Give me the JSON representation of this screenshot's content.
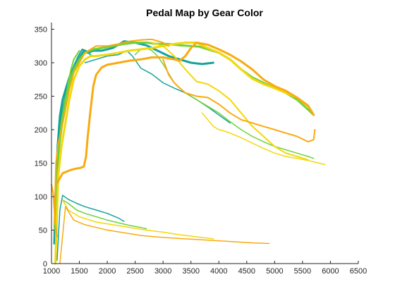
{
  "chart_data": {
    "type": "line",
    "title": "Pedal Map by Gear Color",
    "xlabel": "",
    "ylabel": "",
    "xlim": [
      1000,
      6500
    ],
    "ylim": [
      0,
      360
    ],
    "xticks": [
      1000,
      1500,
      2000,
      2500,
      3000,
      3500,
      4000,
      4500,
      5000,
      5500,
      6000,
      6500
    ],
    "yticks": [
      0,
      50,
      100,
      150,
      200,
      250,
      300,
      350
    ],
    "grid": false,
    "legend": "none",
    "colors": {
      "teal": "#16a39a",
      "green": "#6fd23a",
      "yellow": "#f2d80a",
      "orange": "#f9aa10"
    },
    "series": [
      {
        "color": "#16a39a",
        "width": 3,
        "x": [
          1050,
          1080,
          1110,
          1150,
          1200,
          1260,
          1320,
          1380,
          1450,
          1520,
          1580,
          1650,
          1750,
          1900,
          2100,
          2300,
          2500,
          2700,
          2900,
          3100,
          3300,
          3500,
          3700,
          3900
        ],
        "y": [
          30,
          120,
          175,
          220,
          245,
          262,
          278,
          290,
          300,
          310,
          318,
          315,
          318,
          318,
          322,
          332,
          330,
          326,
          318,
          310,
          305,
          300,
          298,
          300
        ]
      },
      {
        "color": "#16a39a",
        "width": 2,
        "x": [
          1060,
          1100,
          1150,
          1200,
          1260,
          1320,
          1400,
          1480,
          1550,
          1620,
          1700
        ],
        "y": [
          60,
          160,
          205,
          230,
          255,
          275,
          295,
          310,
          320,
          318,
          312
        ]
      },
      {
        "color": "#16a39a",
        "width": 1.5,
        "x": [
          1600,
          1800,
          2000,
          2200,
          2350,
          2450,
          2600,
          2800,
          3000,
          3200,
          3400,
          3600,
          3800,
          4000,
          4200
        ],
        "y": [
          300,
          305,
          310,
          312,
          318,
          310,
          292,
          283,
          270,
          262,
          255,
          245,
          234,
          222,
          210
        ]
      },
      {
        "color": "#16a39a",
        "width": 1.5,
        "x": [
          1100,
          1150,
          1200,
          1300,
          1450,
          1600,
          1800,
          2000,
          2200,
          2300
        ],
        "y": [
          5,
          80,
          102,
          96,
          90,
          85,
          80,
          75,
          68,
          63
        ]
      },
      {
        "color": "#6fd23a",
        "width": 3,
        "x": [
          1080,
          1120,
          1180,
          1250,
          1320,
          1400,
          1500,
          1600,
          1750,
          1900,
          2100,
          2300,
          2500,
          2700,
          2900,
          3100,
          3300,
          3500,
          3650,
          3800,
          4000,
          4200,
          4400,
          4600,
          4800,
          5000,
          5200,
          5400,
          5600,
          5700
        ],
        "y": [
          40,
          160,
          210,
          245,
          270,
          290,
          305,
          315,
          320,
          322,
          325,
          328,
          330,
          330,
          328,
          328,
          326,
          325,
          324,
          320,
          315,
          305,
          290,
          278,
          270,
          262,
          255,
          245,
          230,
          222
        ]
      },
      {
        "color": "#6fd23a",
        "width": 2,
        "x": [
          1050,
          1100,
          1150,
          1200,
          1250,
          1300,
          1350,
          1400,
          1500
        ],
        "y": [
          50,
          140,
          180,
          210,
          240,
          270,
          290,
          305,
          318
        ]
      },
      {
        "color": "#6fd23a",
        "width": 1.5,
        "x": [
          2500,
          2600,
          2700,
          2800,
          2900,
          3000,
          3200,
          3400,
          3600,
          3800,
          4000,
          4200,
          4400,
          4600,
          4800,
          5000,
          5200,
          5400,
          5600,
          5700
        ],
        "y": [
          312,
          320,
          322,
          318,
          310,
          298,
          270,
          255,
          245,
          235,
          225,
          212,
          200,
          190,
          182,
          175,
          170,
          165,
          160,
          157
        ]
      },
      {
        "color": "#6fd23a",
        "width": 1.5,
        "x": [
          1200,
          1300,
          1450,
          1600,
          1800,
          2000,
          2200,
          2400,
          2600,
          2700
        ],
        "y": [
          95,
          90,
          80,
          75,
          70,
          65,
          61,
          57,
          54,
          52
        ]
      },
      {
        "color": "#f2d80a",
        "width": 3,
        "x": [
          1070,
          1120,
          1180,
          1250,
          1320,
          1400,
          1500,
          1600,
          1700,
          1800,
          2000,
          2200,
          2400,
          2600,
          2800,
          3000,
          3200,
          3400,
          3600,
          3800,
          4000,
          4200,
          4400,
          4600,
          4800,
          5000,
          5200,
          5400,
          5600
        ],
        "y": [
          0,
          130,
          175,
          210,
          245,
          275,
          295,
          305,
          310,
          310,
          312,
          315,
          318,
          320,
          322,
          325,
          328,
          330,
          330,
          322,
          315,
          305,
          290,
          276,
          268,
          262,
          255,
          248,
          235
        ]
      },
      {
        "color": "#f2d80a",
        "width": 2,
        "x": [
          2800,
          3000,
          3200,
          3400,
          3600,
          3800,
          4000,
          4200,
          4400,
          4600,
          4800,
          5000,
          5200,
          5400,
          5600
        ],
        "y": [
          330,
          325,
          310,
          290,
          272,
          268,
          258,
          245,
          225,
          205,
          190,
          175,
          165,
          160,
          155
        ]
      },
      {
        "color": "#f2d80a",
        "width": 1.5,
        "x": [
          3700,
          3800,
          3900,
          4000,
          4100,
          4200,
          4400,
          4600,
          4800,
          5000,
          5200,
          5400,
          5600,
          5800,
          5900
        ],
        "y": [
          225,
          215,
          205,
          200,
          198,
          195,
          188,
          180,
          172,
          165,
          160,
          157,
          154,
          150,
          148
        ]
      },
      {
        "color": "#f2d80a",
        "width": 1.5,
        "x": [
          1200,
          1300,
          1500,
          1800,
          2100,
          2400,
          2700,
          3000,
          3300,
          3600,
          3900
        ],
        "y": [
          95,
          80,
          70,
          62,
          58,
          54,
          50,
          47,
          43,
          40,
          37
        ]
      },
      {
        "color": "#f9aa10",
        "width": 3,
        "x": [
          1100,
          1200,
          1350,
          1450,
          1520,
          1580,
          1620,
          1650,
          1700,
          1750,
          1800,
          1900,
          2000,
          2200,
          2400,
          2600,
          2800,
          3000,
          3200,
          3300,
          3400,
          3500,
          3600,
          3800,
          4000,
          4200,
          4400,
          4600,
          4800,
          5000,
          5200,
          5400,
          5600,
          5700
        ],
        "y": [
          120,
          135,
          140,
          142,
          143,
          145,
          160,
          190,
          230,
          265,
          282,
          293,
          297,
          300,
          303,
          305,
          308,
          308,
          305,
          303,
          310,
          322,
          330,
          327,
          320,
          312,
          302,
          290,
          275,
          265,
          258,
          248,
          236,
          222
        ]
      },
      {
        "color": "#f9aa10",
        "width": 2,
        "x": [
          1050,
          1080,
          1120,
          1180,
          1250,
          1320,
          1400,
          1500,
          1600,
          1700,
          1800,
          2000,
          2200,
          2400,
          2600,
          2800,
          3000,
          3100
        ],
        "y": [
          60,
          150,
          180,
          200,
          230,
          260,
          285,
          300,
          315,
          320,
          325,
          325,
          328,
          332,
          334,
          335,
          330,
          325
        ]
      },
      {
        "color": "#f9aa10",
        "width": 2,
        "x": [
          3000,
          3100,
          3200,
          3300,
          3400,
          3600,
          3800,
          4000,
          4200,
          4400,
          4600,
          4800,
          5000,
          5200,
          5400,
          5600,
          5700,
          5720
        ],
        "y": [
          305,
          282,
          270,
          262,
          255,
          250,
          248,
          238,
          225,
          215,
          210,
          205,
          200,
          195,
          190,
          182,
          185,
          200
        ]
      },
      {
        "color": "#f9aa10",
        "width": 1.5,
        "x": [
          1150,
          1250,
          1400,
          1600,
          1800,
          2000,
          2300,
          2600,
          3000,
          3400,
          3800,
          4200,
          4600,
          4900
        ],
        "y": [
          0,
          85,
          65,
          58,
          54,
          50,
          46,
          42,
          39,
          37,
          35,
          33,
          31,
          30
        ]
      },
      {
        "color": "#f9aa10",
        "width": 2,
        "x": [
          1000,
          1030,
          1050,
          1070,
          1100
        ],
        "y": [
          118,
          105,
          80,
          60,
          40
        ]
      }
    ]
  }
}
